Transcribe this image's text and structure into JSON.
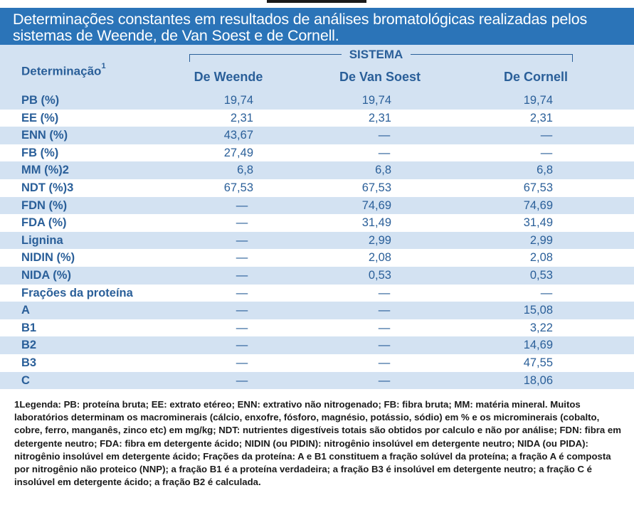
{
  "title": "Determinações constantes em resultados de análises bromatológicas realizadas pelos sistemas de Weende, de Van Soest e de Cornell.",
  "header": {
    "determinacao": "Determinação",
    "determinacao_sup": "1",
    "sistema": "SISTEMA",
    "columns": [
      "De Weende",
      "De Van Soest",
      "De Cornell"
    ]
  },
  "rows": [
    {
      "label": "PB (%)",
      "values": [
        "19,74",
        "19,74",
        "19,74"
      ]
    },
    {
      "label": "EE (%)",
      "values": [
        "2,31",
        "2,31",
        "2,31"
      ]
    },
    {
      "label": "ENN (%)",
      "values": [
        "43,67",
        "—",
        "—"
      ]
    },
    {
      "label": "FB (%)",
      "values": [
        "27,49",
        "—",
        "—"
      ]
    },
    {
      "label": "MM (%)2",
      "values": [
        "6,8",
        "6,8",
        "6,8"
      ]
    },
    {
      "label": "NDT (%)3",
      "values": [
        "67,53",
        "67,53",
        "67,53"
      ]
    },
    {
      "label": "FDN (%)",
      "values": [
        "—",
        "74,69",
        "74,69"
      ]
    },
    {
      "label": "FDA (%)",
      "values": [
        "—",
        "31,49",
        "31,49"
      ]
    },
    {
      "label": "Lignina",
      "values": [
        "—",
        "2,99",
        "2,99"
      ]
    },
    {
      "label": "NIDIN (%)",
      "values": [
        "—",
        "2,08",
        "2,08"
      ]
    },
    {
      "label": "NIDA (%)",
      "values": [
        "—",
        "0,53",
        "0,53"
      ]
    },
    {
      "label": "Frações da proteína",
      "values": [
        "—",
        "—",
        "—"
      ]
    },
    {
      "label": "A",
      "values": [
        "—",
        "—",
        "15,08"
      ]
    },
    {
      "label": "B1",
      "values": [
        "—",
        "—",
        "3,22"
      ]
    },
    {
      "label": "B2",
      "values": [
        "—",
        "—",
        "14,69"
      ]
    },
    {
      "label": "B3",
      "values": [
        "—",
        "—",
        "47,55"
      ]
    },
    {
      "label": "C",
      "values": [
        "—",
        "—",
        "18,06"
      ]
    }
  ],
  "legend": "1Legenda: PB: proteína bruta; EE: extrato etéreo; ENN: extrativo não nitrogenado; FB: fibra bruta; MM: matéria mineral. Muitos laboratórios determinam os macrominerais (cálcio, enxofre, fósforo, magnésio, potássio, sódio) em % e os microminerais (cobalto, cobre, ferro, manganês, zinco etc) em mg/kg; NDT: nutrientes digestíveis totais são obtidos por calculo e não por análise; FDN: fibra em detergente neutro; FDA: fibra em detergente ácido; NIDIN (ou PIDIN): nitrogênio insolúvel em detergente neutro; NIDA (ou PIDA): nitrogênio insolúvel em detergente ácido; Frações da proteína: A e B1 constituem a fração solúvel da proteína; a fração A é composta por nitrogênio não proteico (NNP); a fração B1 é a proteína verdadeira; a fração B3 é insolúvel em detergente neutro; a fração C é insolúvel em detergente ácido; a fração B2 é calculada.",
  "colors": {
    "title_bg": "#2b74b8",
    "band": "#d3e2f2",
    "text": "#2a5f99"
  }
}
